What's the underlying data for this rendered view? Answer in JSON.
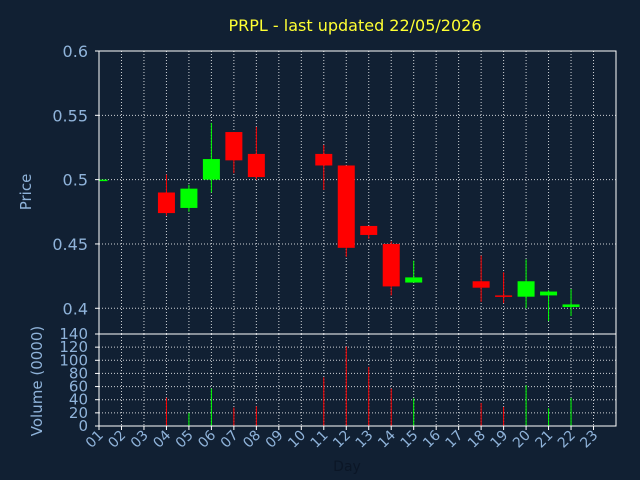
{
  "chart_data": [
    {
      "type": "candlestick",
      "title": "PRPL - last updated 22/05/2026",
      "ylabel": "Price",
      "ylim": [
        0.38,
        0.6
      ],
      "yticks": [
        "0.6",
        "0.55",
        "0.5",
        "0.45",
        "0.4"
      ],
      "grid": true,
      "categories": [
        "01",
        "02",
        "03",
        "04",
        "05",
        "06",
        "07",
        "08",
        "09",
        "10",
        "11",
        "12",
        "13",
        "14",
        "15",
        "16",
        "17",
        "18",
        "19",
        "20",
        "21",
        "22",
        "23"
      ],
      "candles": [
        {
          "day": "01",
          "open": 0.5,
          "close": 0.5,
          "high": 0.5,
          "low": 0.5
        },
        {
          "day": "04",
          "open": 0.49,
          "close": 0.474,
          "high": 0.504,
          "low": 0.472
        },
        {
          "day": "05",
          "open": 0.478,
          "close": 0.493,
          "high": 0.496,
          "low": 0.475
        },
        {
          "day": "06",
          "open": 0.5,
          "close": 0.516,
          "high": 0.544,
          "low": 0.49
        },
        {
          "day": "07",
          "open": 0.537,
          "close": 0.515,
          "high": 0.537,
          "low": 0.505
        },
        {
          "day": "08",
          "open": 0.52,
          "close": 0.502,
          "high": 0.541,
          "low": 0.5
        },
        {
          "day": "11",
          "open": 0.52,
          "close": 0.511,
          "high": 0.527,
          "low": 0.492
        },
        {
          "day": "12",
          "open": 0.511,
          "close": 0.447,
          "high": 0.511,
          "low": 0.44
        },
        {
          "day": "13",
          "open": 0.464,
          "close": 0.457,
          "high": 0.464,
          "low": 0.454
        },
        {
          "day": "14",
          "open": 0.45,
          "close": 0.417,
          "high": 0.452,
          "low": 0.41
        },
        {
          "day": "15",
          "open": 0.42,
          "close": 0.424,
          "high": 0.437,
          "low": 0.42
        },
        {
          "day": "18",
          "open": 0.421,
          "close": 0.416,
          "high": 0.441,
          "low": 0.405
        },
        {
          "day": "19",
          "open": 0.41,
          "close": 0.409,
          "high": 0.428,
          "low": 0.404
        },
        {
          "day": "20",
          "open": 0.409,
          "close": 0.421,
          "high": 0.438,
          "low": 0.4
        },
        {
          "day": "21",
          "open": 0.41,
          "close": 0.413,
          "high": 0.414,
          "low": 0.39
        },
        {
          "day": "22",
          "open": 0.401,
          "close": 0.403,
          "high": 0.415,
          "low": 0.394
        }
      ],
      "colors": {
        "up": "#00ff00",
        "down": "#ff0000",
        "grid": "#ffffff",
        "axis": "#ffffff",
        "text": "#8fb3da",
        "title": "#ffff33",
        "background": "#112033"
      }
    },
    {
      "type": "bar",
      "ylabel": "Volume (0000)",
      "ylim": [
        0,
        140
      ],
      "yticks": [
        "0",
        "20",
        "40",
        "60",
        "80",
        "100",
        "120",
        "140"
      ],
      "xlabel": "Day",
      "categories": [
        "01",
        "02",
        "03",
        "04",
        "05",
        "06",
        "07",
        "08",
        "09",
        "10",
        "11",
        "12",
        "13",
        "14",
        "15",
        "16",
        "17",
        "18",
        "19",
        "20",
        "21",
        "22",
        "23"
      ],
      "bars": [
        {
          "day": "04",
          "value": 43,
          "direction": "down"
        },
        {
          "day": "05",
          "value": 20,
          "direction": "up"
        },
        {
          "day": "06",
          "value": 57,
          "direction": "up"
        },
        {
          "day": "07",
          "value": 28,
          "direction": "down"
        },
        {
          "day": "08",
          "value": 30,
          "direction": "down"
        },
        {
          "day": "11",
          "value": 74,
          "direction": "down"
        },
        {
          "day": "12",
          "value": 121,
          "direction": "down"
        },
        {
          "day": "13",
          "value": 90,
          "direction": "down"
        },
        {
          "day": "14",
          "value": 57,
          "direction": "down"
        },
        {
          "day": "15",
          "value": 42,
          "direction": "up"
        },
        {
          "day": "18",
          "value": 35,
          "direction": "down"
        },
        {
          "day": "19",
          "value": 29,
          "direction": "down"
        },
        {
          "day": "20",
          "value": 62,
          "direction": "up"
        },
        {
          "day": "21",
          "value": 27,
          "direction": "up"
        },
        {
          "day": "22",
          "value": 43,
          "direction": "up"
        }
      ]
    }
  ]
}
